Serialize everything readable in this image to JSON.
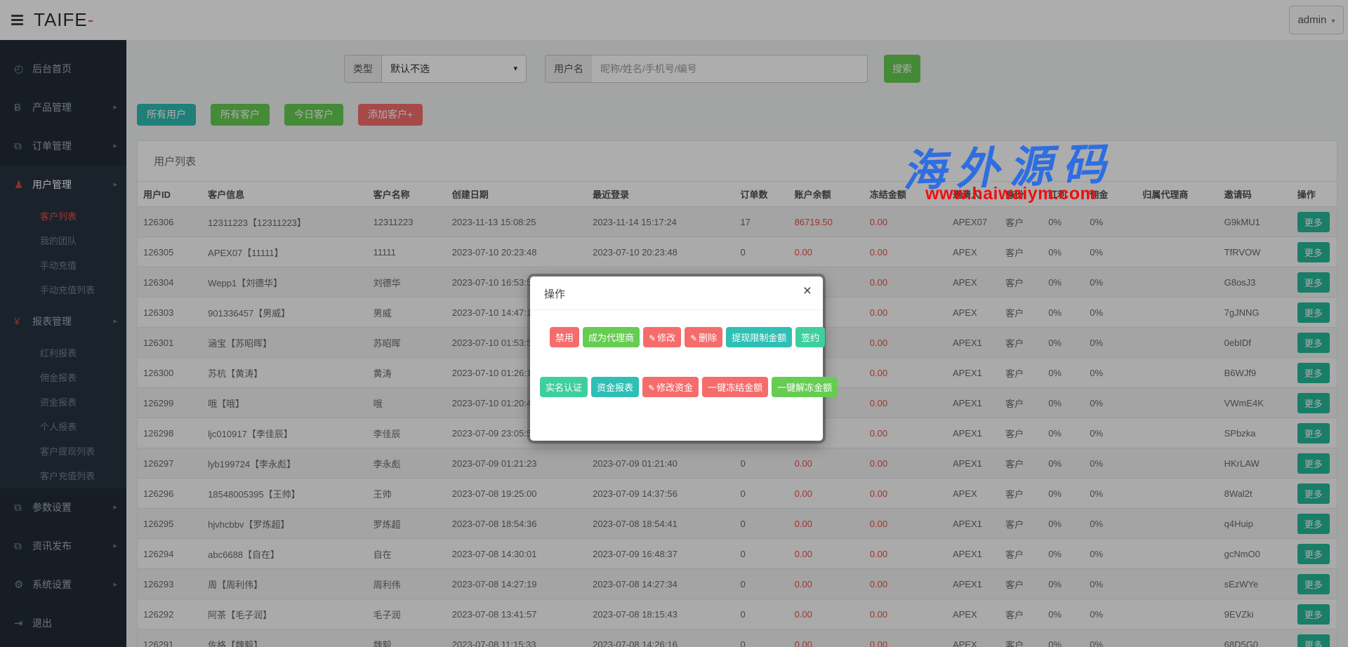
{
  "icons": {
    "chevron_right": "▸",
    "caret_down": "▾",
    "select_caret": "▾",
    "close": "×",
    "pencil": "✎"
  },
  "topbar": {
    "logo_text": "TAIFE",
    "logo_dash": "-",
    "user_menu_label": "admin"
  },
  "sidebar": {
    "items": [
      {
        "type": "item",
        "icon": "dashboard-icon",
        "glyph": "◴",
        "label": "后台首页",
        "arrow": false
      },
      {
        "type": "item",
        "icon": "bitcoin-icon",
        "glyph": "Ƀ",
        "label": "产品管理",
        "arrow": true
      },
      {
        "type": "item",
        "icon": "orders-icon",
        "glyph": "⧉",
        "label": "订单管理",
        "arrow": true
      },
      {
        "type": "group",
        "icon": "user-icon",
        "glyph": "♟",
        "icon_red": true,
        "label": "用户管理",
        "arrow": true,
        "parent_active": true,
        "children": [
          {
            "label": "客户列表",
            "active": true
          },
          {
            "label": "我的团队",
            "active": false
          },
          {
            "label": "手动充值",
            "active": false
          },
          {
            "label": "手动充值列表",
            "active": false
          }
        ]
      },
      {
        "type": "group",
        "icon": "yen-icon",
        "glyph": "¥",
        "icon_red": true,
        "label": "报表管理",
        "arrow": true,
        "parent_active": false,
        "children": [
          {
            "label": "红利报表",
            "active": false
          },
          {
            "label": "佣金报表",
            "active": false
          },
          {
            "label": "资金报表",
            "active": false
          },
          {
            "label": "个人报表",
            "active": false
          },
          {
            "label": "客户提现列表",
            "active": false
          },
          {
            "label": "客户充值列表",
            "active": false
          }
        ]
      },
      {
        "type": "item",
        "icon": "params-icon",
        "glyph": "⧉",
        "label": "参数设置",
        "arrow": true
      },
      {
        "type": "item",
        "icon": "news-icon",
        "glyph": "⧉",
        "label": "资讯发布",
        "arrow": true
      },
      {
        "type": "item",
        "icon": "gear-icon",
        "glyph": "⚙",
        "label": "系统设置",
        "arrow": true
      },
      {
        "type": "item",
        "icon": "logout-icon",
        "glyph": "⇥",
        "label": "退出",
        "arrow": false
      }
    ]
  },
  "filters": {
    "type_label": "类型",
    "type_value": "默认不选",
    "username_label": "用户名",
    "username_placeholder": "昵称/姓名/手机号/编号",
    "search_label": "搜索"
  },
  "action_buttons": [
    {
      "label": "所有用户",
      "color": "teal"
    },
    {
      "label": "所有客户",
      "color": "green"
    },
    {
      "label": "今日客户",
      "color": "green"
    },
    {
      "label": "添加客户+",
      "color": "salmon"
    }
  ],
  "panel": {
    "title": "用户列表"
  },
  "table": {
    "columns": [
      "用户ID",
      "客户信息",
      "客户名称",
      "创建日期",
      "最近登录",
      "订单数",
      "账户余额",
      "冻结金额",
      "邀请人",
      "身份",
      "红利",
      "佣金",
      "归属代理商",
      "邀请码",
      "操作"
    ],
    "more_label": "更多",
    "rows": [
      {
        "id": "126306",
        "info": "12311223【12311223】",
        "name": "12311223",
        "created": "2023-11-13 15:08:25",
        "last_login": "2023-11-14 15:17:24",
        "orders": "17",
        "balance": "86719.50",
        "frozen": "0.00",
        "inviter": "APEX07",
        "identity": "客户",
        "bonus": "0%",
        "commission": "0%",
        "agent": "",
        "code": "G9kMU1"
      },
      {
        "id": "126305",
        "info": "APEX07【11111】",
        "name": "11111",
        "created": "2023-07-10 20:23:48",
        "last_login": "2023-07-10 20:23:48",
        "orders": "0",
        "balance": "0.00",
        "frozen": "0.00",
        "inviter": "APEX",
        "identity": "客户",
        "bonus": "0%",
        "commission": "0%",
        "agent": "",
        "code": "TfRVOW"
      },
      {
        "id": "126304",
        "info": "Wepp1【刘德华】",
        "name": "刘德华",
        "created": "2023-07-10 16:53:55",
        "last_login": "2023-07-10 16:54:03",
        "orders": "0",
        "balance": "0.00",
        "frozen": "0.00",
        "inviter": "APEX",
        "identity": "客户",
        "bonus": "0%",
        "commission": "0%",
        "agent": "",
        "code": "G8osJ3"
      },
      {
        "id": "126303",
        "info": "901336457【男威】",
        "name": "男威",
        "created": "2023-07-10 14:47:1",
        "last_login": "",
        "orders": "",
        "balance": "",
        "frozen": "0.00",
        "inviter": "APEX",
        "identity": "客户",
        "bonus": "0%",
        "commission": "0%",
        "agent": "",
        "code": "7gJNNG"
      },
      {
        "id": "126301",
        "info": "涵宝【苏昭晖】",
        "name": "苏昭晖",
        "created": "2023-07-10 01:53:5",
        "last_login": "",
        "orders": "",
        "balance": "",
        "frozen": "0.00",
        "inviter": "APEX1",
        "identity": "客户",
        "bonus": "0%",
        "commission": "0%",
        "agent": "",
        "code": "0ebIDf"
      },
      {
        "id": "126300",
        "info": "苏杭【黄涛】",
        "name": "黄涛",
        "created": "2023-07-10 01:26:1",
        "last_login": "",
        "orders": "",
        "balance": "",
        "frozen": "0.00",
        "inviter": "APEX1",
        "identity": "客户",
        "bonus": "0%",
        "commission": "0%",
        "agent": "",
        "code": "B6WJf9"
      },
      {
        "id": "126299",
        "info": "哦【哦】",
        "name": "哦",
        "created": "2023-07-10 01:20:4",
        "last_login": "",
        "orders": "",
        "balance": "",
        "frozen": "0.00",
        "inviter": "APEX1",
        "identity": "客户",
        "bonus": "0%",
        "commission": "0%",
        "agent": "",
        "code": "VWmE4K"
      },
      {
        "id": "126298",
        "info": "ljc010917【李佳辰】",
        "name": "李佳辰",
        "created": "2023-07-09 23:05:5",
        "last_login": "",
        "orders": "",
        "balance": "",
        "frozen": "0.00",
        "inviter": "APEX1",
        "identity": "客户",
        "bonus": "0%",
        "commission": "0%",
        "agent": "",
        "code": "SPbzka"
      },
      {
        "id": "126297",
        "info": "lyb199724【李永彪】",
        "name": "李永彪",
        "created": "2023-07-09 01:21:23",
        "last_login": "2023-07-09 01:21:40",
        "orders": "0",
        "balance": "0.00",
        "frozen": "0.00",
        "inviter": "APEX1",
        "identity": "客户",
        "bonus": "0%",
        "commission": "0%",
        "agent": "",
        "code": "HKrLAW"
      },
      {
        "id": "126296",
        "info": "18548005395【王帅】",
        "name": "王帅",
        "created": "2023-07-08 19:25:00",
        "last_login": "2023-07-09 14:37:56",
        "orders": "0",
        "balance": "0.00",
        "frozen": "0.00",
        "inviter": "APEX",
        "identity": "客户",
        "bonus": "0%",
        "commission": "0%",
        "agent": "",
        "code": "8Wal2t"
      },
      {
        "id": "126295",
        "info": "hjvhcbbv【罗炼超】",
        "name": "罗炼超",
        "created": "2023-07-08 18:54:36",
        "last_login": "2023-07-08 18:54:41",
        "orders": "0",
        "balance": "0.00",
        "frozen": "0.00",
        "inviter": "APEX1",
        "identity": "客户",
        "bonus": "0%",
        "commission": "0%",
        "agent": "",
        "code": "q4Huip"
      },
      {
        "id": "126294",
        "info": "abc6688【自在】",
        "name": "自在",
        "created": "2023-07-08 14:30:01",
        "last_login": "2023-07-09 16:48:37",
        "orders": "0",
        "balance": "0.00",
        "frozen": "0.00",
        "inviter": "APEX1",
        "identity": "客户",
        "bonus": "0%",
        "commission": "0%",
        "agent": "",
        "code": "gcNmO0"
      },
      {
        "id": "126293",
        "info": "周【周利伟】",
        "name": "周利伟",
        "created": "2023-07-08 14:27:19",
        "last_login": "2023-07-08 14:27:34",
        "orders": "0",
        "balance": "0.00",
        "frozen": "0.00",
        "inviter": "APEX1",
        "identity": "客户",
        "bonus": "0%",
        "commission": "0%",
        "agent": "",
        "code": "sEzWYe"
      },
      {
        "id": "126292",
        "info": "阿茶【毛子润】",
        "name": "毛子润",
        "created": "2023-07-08 13:41:57",
        "last_login": "2023-07-08 18:15:43",
        "orders": "0",
        "balance": "0.00",
        "frozen": "0.00",
        "inviter": "APEX",
        "identity": "客户",
        "bonus": "0%",
        "commission": "0%",
        "agent": "",
        "code": "9EVZki"
      },
      {
        "id": "126291",
        "info": "佐格【魏毅】",
        "name": "魏毅",
        "created": "2023-07-08 11:15:33",
        "last_login": "2023-07-08 14:26:16",
        "orders": "0",
        "balance": "0.00",
        "frozen": "0.00",
        "inviter": "APEX",
        "identity": "客户",
        "bonus": "0%",
        "commission": "0%",
        "agent": "",
        "code": "68D5G0"
      }
    ]
  },
  "watermark": {
    "line1": "海外源码",
    "line2": "www.haiwaiym.com"
  },
  "modal": {
    "title": "操作",
    "button_rows": [
      [
        {
          "label": "禁用",
          "color": "salmon",
          "pencil": false
        },
        {
          "label": "成为代理商",
          "color": "green",
          "pencil": false
        },
        {
          "label": "修改",
          "color": "salmon",
          "pencil": true
        },
        {
          "label": "删除",
          "color": "salmon",
          "pencil": true
        },
        {
          "label": "提现限制金额",
          "color": "teal2",
          "pencil": false
        },
        {
          "label": "签约",
          "color": "mint",
          "pencil": false
        }
      ],
      [
        {
          "label": "实名认证",
          "color": "mint",
          "pencil": false
        },
        {
          "label": "资金报表",
          "color": "teal2",
          "pencil": false
        },
        {
          "label": "修改资金",
          "color": "salmon",
          "pencil": true
        },
        {
          "label": "一键冻结金额",
          "color": "salmon",
          "pencil": false
        },
        {
          "label": "一键解冻金额",
          "color": "green",
          "pencil": false
        }
      ]
    ]
  }
}
